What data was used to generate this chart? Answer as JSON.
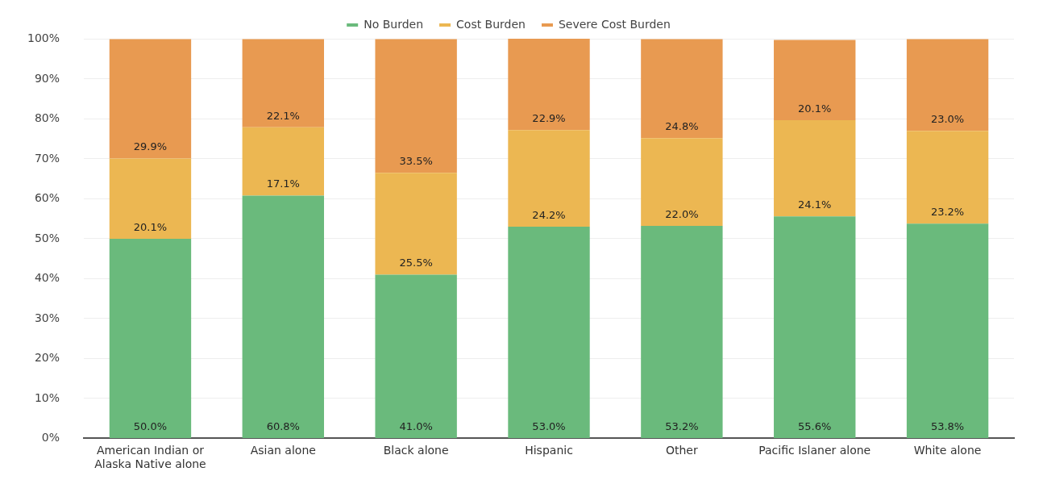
{
  "chart_data": {
    "type": "bar",
    "stacked": true,
    "legend": "top",
    "grid": "y",
    "categories": [
      "American Indian or Alaska Native alone",
      "Asian alone",
      "Black alone",
      "Hispanic",
      "Other",
      "Pacific Islaner alone",
      "White alone"
    ],
    "series": [
      {
        "name": "No Burden",
        "color": "#6aba7c",
        "values": [
          50.0,
          60.8,
          41.0,
          53.0,
          53.2,
          55.6,
          53.8
        ],
        "value_labels": [
          "50.0%",
          "60.8%",
          "41.0%",
          "53.0%",
          "53.2%",
          "55.6%",
          "53.8%"
        ]
      },
      {
        "name": "Cost Burden",
        "color": "#ecb752",
        "values": [
          20.1,
          17.1,
          25.5,
          24.2,
          22.0,
          24.1,
          23.2
        ],
        "value_labels": [
          "20.1%",
          "17.1%",
          "25.5%",
          "24.2%",
          "22.0%",
          "24.1%",
          "23.2%"
        ]
      },
      {
        "name": "Severe Cost Burden",
        "color": "#e89a51",
        "values": [
          29.9,
          22.1,
          33.5,
          22.9,
          24.8,
          20.1,
          23.0
        ],
        "value_labels": [
          "29.9%",
          "22.1%",
          "33.5%",
          "22.9%",
          "24.8%",
          "20.1%",
          "23.0%"
        ]
      }
    ],
    "ylim": [
      0,
      100.1
    ],
    "yticks": [
      {
        "value": 0,
        "label": "0%"
      },
      {
        "value": 10,
        "label": "10%"
      },
      {
        "value": 20,
        "label": "20%"
      },
      {
        "value": 30,
        "label": "30%"
      },
      {
        "value": 40,
        "label": "40%"
      },
      {
        "value": 50,
        "label": "50%"
      },
      {
        "value": 60,
        "label": "60%"
      },
      {
        "value": 70,
        "label": "70%"
      },
      {
        "value": 80,
        "label": "80%"
      },
      {
        "value": 90,
        "label": "90%"
      },
      {
        "value": 100,
        "label": "100%"
      }
    ]
  }
}
